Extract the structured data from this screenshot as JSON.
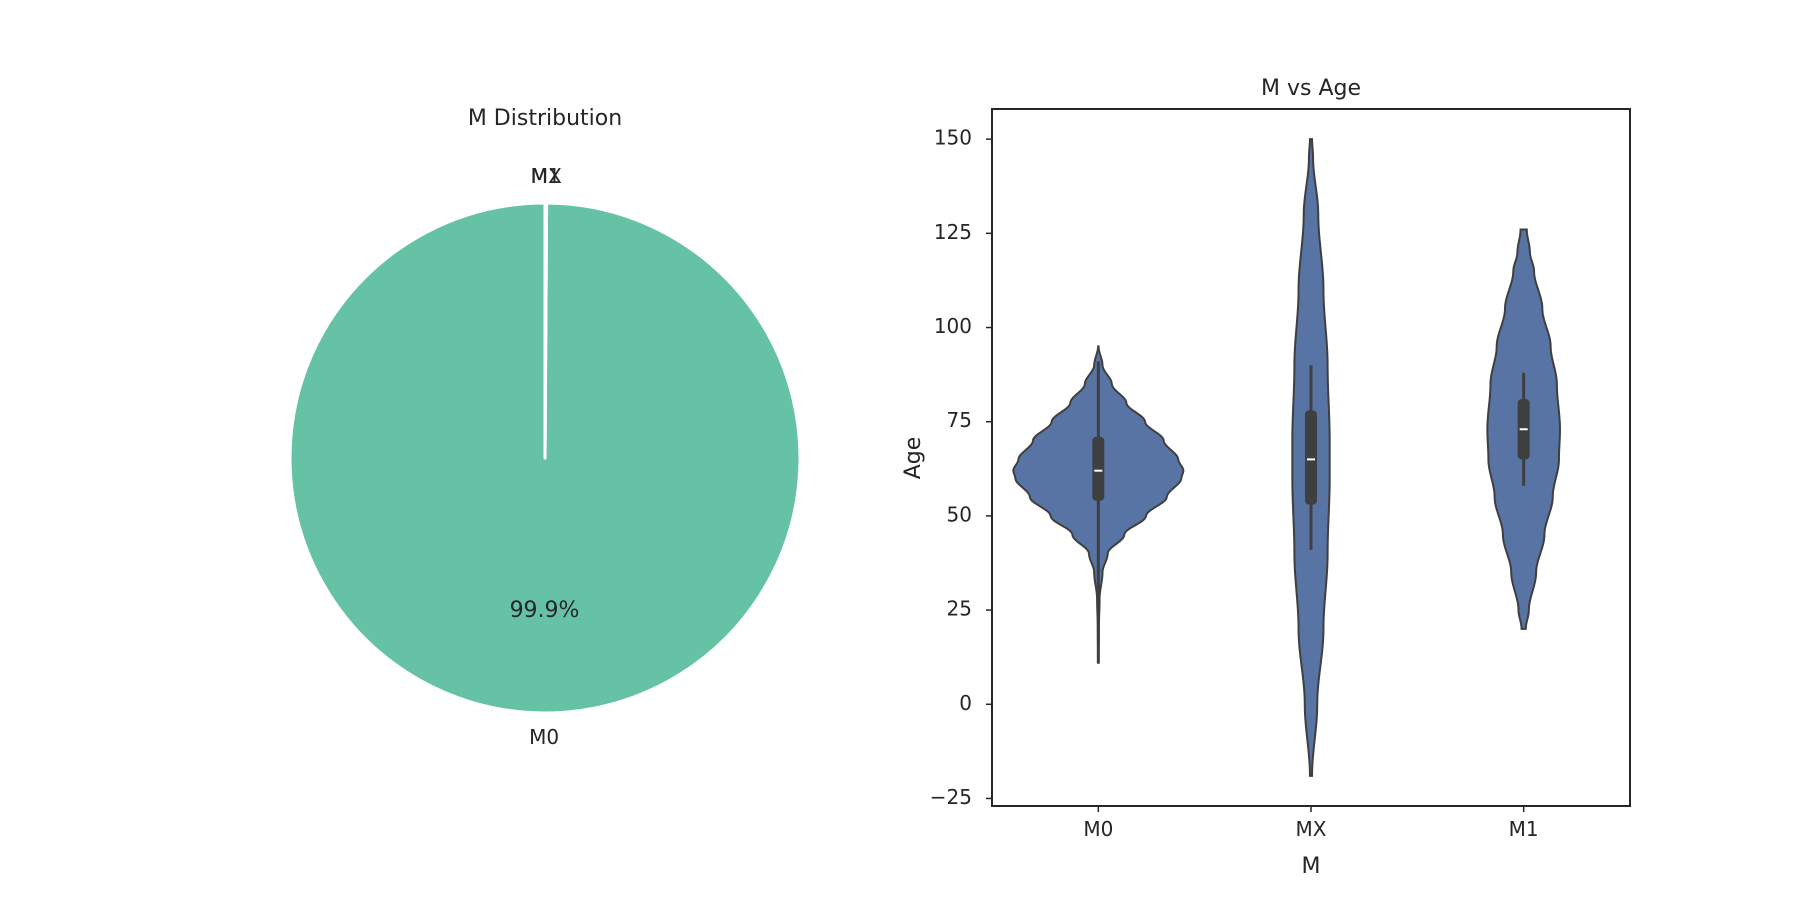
{
  "chart_data": [
    {
      "type": "pie",
      "title": "M Distribution",
      "labels": [
        "M0",
        "MX",
        "M1"
      ],
      "values": [
        99.9,
        0.05,
        0.05
      ],
      "percent_labels": [
        "99.9%",
        "",
        ""
      ],
      "colors": [
        "#66c2a5",
        "#fc8d62",
        "#8da0cb"
      ],
      "start_angle_deg": 90,
      "direction": "counterclockwise",
      "edge_color": "#ffffff"
    },
    {
      "type": "violin",
      "title": "M vs Age",
      "xlabel": "M",
      "ylabel": "Age",
      "categories": [
        "M0",
        "MX",
        "M1"
      ],
      "ylim": [
        -27,
        158
      ],
      "yticks": [
        -25,
        0,
        25,
        50,
        75,
        100,
        125,
        150
      ],
      "ytick_labels": [
        "−25",
        "0",
        "25",
        "50",
        "75",
        "100",
        "125",
        "150"
      ],
      "fill_color": "#5874a4",
      "line_color": "#3f3f3f",
      "grid": false,
      "violins": [
        {
          "category": "M0",
          "y_min": 11,
          "y_max": 95,
          "q1": 54,
          "median": 62,
          "q3": 71,
          "whisker_low": 11,
          "whisker_high": 91,
          "profile": [
            [
              11,
              0.002
            ],
            [
              20,
              0.005
            ],
            [
              28,
              0.012
            ],
            [
              35,
              0.04
            ],
            [
              40,
              0.09
            ],
            [
              45,
              0.25
            ],
            [
              50,
              0.46
            ],
            [
              55,
              0.66
            ],
            [
              60,
              0.8
            ],
            [
              62,
              0.82
            ],
            [
              65,
              0.77
            ],
            [
              70,
              0.63
            ],
            [
              75,
              0.45
            ],
            [
              80,
              0.27
            ],
            [
              85,
              0.13
            ],
            [
              90,
              0.04
            ],
            [
              95,
              0.002
            ]
          ]
        },
        {
          "category": "MX",
          "y_min": -19,
          "y_max": 150,
          "q1": 53,
          "median": 65,
          "q3": 78,
          "whisker_low": 41,
          "whisker_high": 90,
          "profile": [
            [
              -19,
              0.01
            ],
            [
              0,
              0.06
            ],
            [
              20,
              0.12
            ],
            [
              40,
              0.16
            ],
            [
              60,
              0.18
            ],
            [
              70,
              0.18
            ],
            [
              90,
              0.16
            ],
            [
              110,
              0.12
            ],
            [
              130,
              0.07
            ],
            [
              145,
              0.02
            ],
            [
              150,
              0.01
            ]
          ]
        },
        {
          "category": "M1",
          "y_min": 20,
          "y_max": 126,
          "q1": 65,
          "median": 73,
          "q3": 81,
          "whisker_low": 58,
          "whisker_high": 88,
          "profile": [
            [
              20,
              0.02
            ],
            [
              25,
              0.05
            ],
            [
              35,
              0.12
            ],
            [
              45,
              0.2
            ],
            [
              55,
              0.28
            ],
            [
              65,
              0.34
            ],
            [
              73,
              0.35
            ],
            [
              85,
              0.32
            ],
            [
              95,
              0.26
            ],
            [
              105,
              0.18
            ],
            [
              115,
              0.1
            ],
            [
              120,
              0.06
            ],
            [
              126,
              0.03
            ]
          ]
        }
      ]
    }
  ]
}
